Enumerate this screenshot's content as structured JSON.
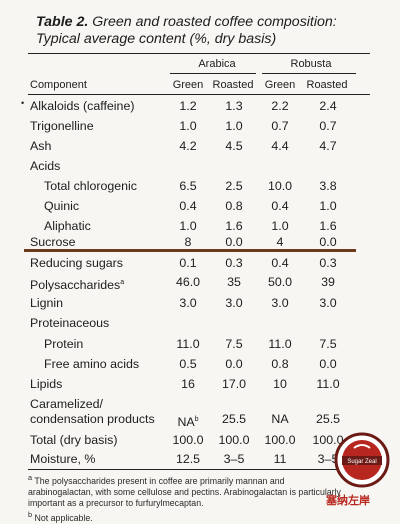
{
  "title": {
    "line1_label": "Table 2.",
    "line1_rest": "Green and roasted coffee composition:",
    "line2": "Typical average content (%, dry basis)"
  },
  "header": {
    "group_arabica": "Arabica",
    "group_robusta": "Robusta",
    "component": "Component",
    "col1": "Green",
    "col2": "Roasted",
    "col3": "Green",
    "col4": "Roasted"
  },
  "bullet": "•",
  "rows": [
    {
      "name": "Alkaloids (caffeine)",
      "v": [
        "1.2",
        "1.3",
        "2.2",
        "2.4"
      ]
    },
    {
      "name": "Trigonelline",
      "v": [
        "1.0",
        "1.0",
        "0.7",
        "0.7"
      ]
    },
    {
      "name": "Ash",
      "v": [
        "4.2",
        "4.5",
        "4.4",
        "4.7"
      ]
    },
    {
      "name": "Acids",
      "v": [
        "",
        "",
        "",
        ""
      ]
    },
    {
      "name": "Total chlorogenic",
      "v": [
        "6.5",
        "2.5",
        "10.0",
        "3.8"
      ]
    },
    {
      "name": "Quinic",
      "v": [
        "0.4",
        "0.8",
        "0.4",
        "1.0"
      ]
    },
    {
      "name": "Aliphatic",
      "v": [
        "1.0",
        "1.6",
        "1.0",
        "1.6"
      ]
    },
    {
      "name": "Sucrose",
      "v": [
        "8",
        "0.0",
        "4",
        "0.0"
      ]
    },
    {
      "name": "Reducing sugars",
      "v": [
        "0.1",
        "0.3",
        "0.4",
        "0.3"
      ]
    },
    {
      "name": "Polysaccharides",
      "sup": "a",
      "v": [
        "46.0",
        "35",
        "50.0",
        "39"
      ]
    },
    {
      "name": "Lignin",
      "v": [
        "3.0",
        "3.0",
        "3.0",
        "3.0"
      ]
    },
    {
      "name": "Proteinaceous",
      "v": [
        "",
        "",
        "",
        ""
      ]
    },
    {
      "name": "Protein",
      "v": [
        "11.0",
        "7.5",
        "11.0",
        "7.5"
      ]
    },
    {
      "name": "Free amino acids",
      "v": [
        "0.5",
        "0.0",
        "0.8",
        "0.0"
      ]
    },
    {
      "name": "Lipids",
      "v": [
        "16",
        "17.0",
        "10",
        "11.0"
      ]
    },
    {
      "name": "Caramelized/",
      "v": [
        "",
        "",
        "",
        ""
      ]
    },
    {
      "name": "condensation products",
      "v": [
        "NA",
        "25.5",
        "NA",
        "25.5"
      ],
      "v1_sup": "b"
    },
    {
      "name": "Total (dry basis)",
      "v": [
        "100.0",
        "100.0",
        "100.0",
        "100.0"
      ]
    },
    {
      "name": "Moisture, %",
      "v": [
        "12.5",
        "3–5",
        "11",
        "3–5"
      ]
    }
  ],
  "notes": {
    "a_mark": "a",
    "a_text": "The polysaccharides present in coffee are primarily mannan and arabinogalactan, with some cellulose and pectins. Arabinogalactan is particularly important as a precursor to furfurylmecaptan.",
    "b_mark": "b",
    "b_text": "Not applicable."
  },
  "watermark": {
    "badge_text": "Sugar Zeal",
    "chinese_text": "塞纳左岸",
    "colors": {
      "badge": "#b8271f",
      "ring": "#6b1a16"
    }
  },
  "colors": {
    "highlight_line": "#6b3b1c",
    "background": "#f7f6f2"
  }
}
